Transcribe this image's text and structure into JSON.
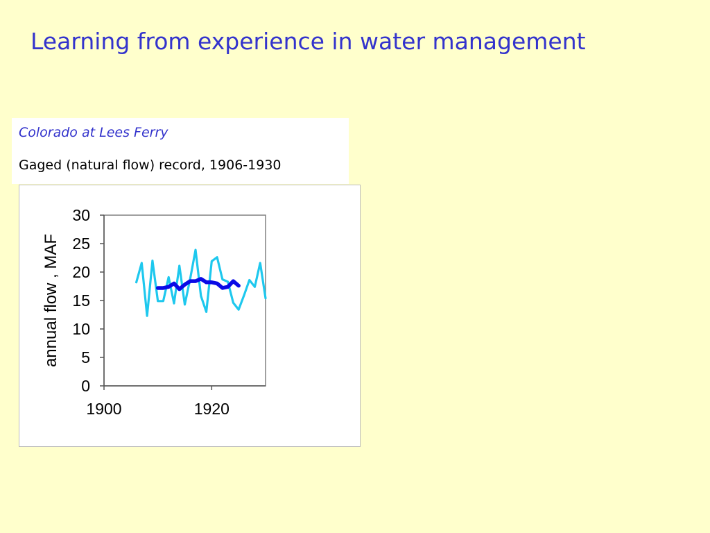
{
  "slide": {
    "title": "Learning from experience in water management"
  },
  "caption": {
    "title": "Colorado at Lees Ferry",
    "subtitle": "Gaged (natural flow) record, 1906-1930"
  },
  "colors": {
    "background": "#FFFFCC",
    "title": "#3333CC",
    "annual_series": "#1EC8EE",
    "moving_average_series": "#0A0AE6"
  },
  "chart_data": {
    "type": "line",
    "title": "",
    "xlabel": "",
    "ylabel": "annual flow , MAF",
    "xlim": [
      1900,
      1930
    ],
    "ylim": [
      0,
      30
    ],
    "xticks": [
      1900,
      1920
    ],
    "yticks": [
      0,
      5,
      10,
      15,
      20,
      25,
      30
    ],
    "grid": false,
    "legend": "none",
    "series": [
      {
        "style": "thin-light-blue",
        "x": [
          1906,
          1907,
          1908,
          1909,
          1910,
          1911,
          1912,
          1913,
          1914,
          1915,
          1916,
          1917,
          1918,
          1919,
          1920,
          1921,
          1922,
          1923,
          1924,
          1925,
          1926,
          1927,
          1928,
          1929,
          1930
        ],
        "y": [
          18.2,
          21.6,
          12.3,
          22.0,
          14.9,
          14.9,
          19.1,
          14.5,
          21.1,
          14.3,
          18.8,
          23.9,
          15.8,
          13.0,
          21.9,
          22.6,
          18.7,
          18.3,
          14.6,
          13.4,
          15.9,
          18.6,
          17.4,
          21.6,
          15.4
        ]
      },
      {
        "style": "thick-dark-blue",
        "x": [
          1910,
          1911,
          1912,
          1913,
          1914,
          1915,
          1916,
          1917,
          1918,
          1919,
          1920,
          1921,
          1922,
          1923,
          1924,
          1925
        ],
        "y": [
          17.2,
          17.2,
          17.4,
          18.0,
          17.0,
          17.8,
          18.4,
          18.4,
          18.8,
          18.2,
          18.2,
          18.0,
          17.2,
          17.4,
          18.4,
          17.6
        ]
      }
    ]
  }
}
